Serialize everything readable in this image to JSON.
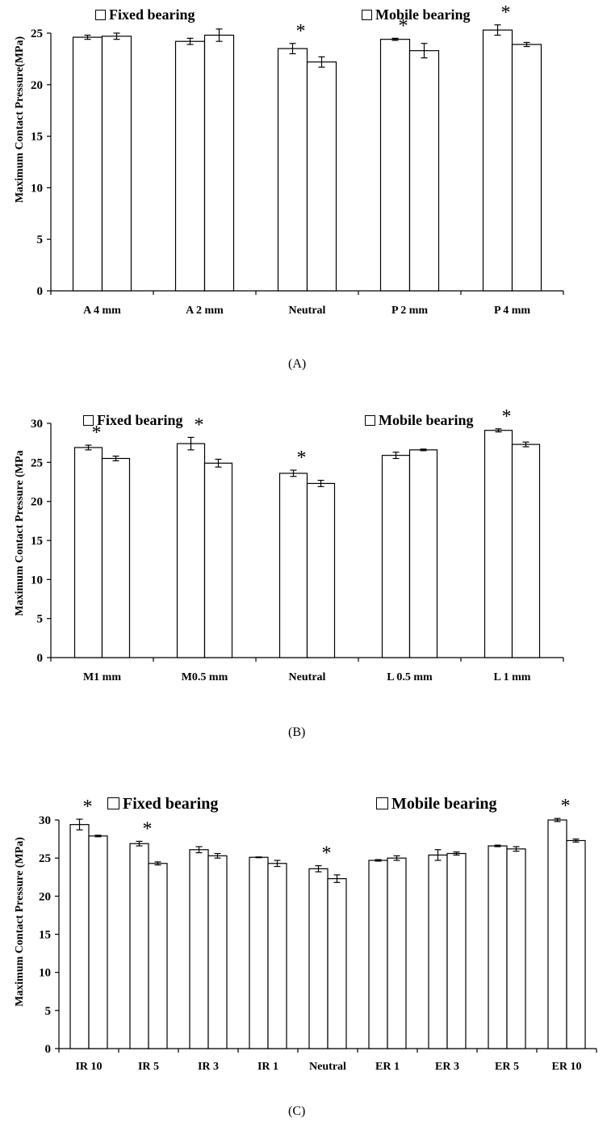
{
  "chart_data": [
    {
      "type": "bar",
      "panel_label": "(A)",
      "ylabel": "Maximum Contact Pressure(MPa)",
      "xlabel": "",
      "ylim": [
        0,
        25
      ],
      "yticks": [
        0,
        5,
        10,
        15,
        20,
        25
      ],
      "legend_position": "top",
      "categories": [
        "A 4 mm",
        "A 2 mm",
        "Neutral",
        "P 2 mm",
        "P 4 mm"
      ],
      "series": [
        {
          "name": "Fixed bearing",
          "values": [
            24.6,
            24.2,
            23.5,
            24.4,
            25.3
          ],
          "errors": [
            0.2,
            0.3,
            0.5,
            0.1,
            0.5
          ]
        },
        {
          "name": "Mobile bearing",
          "values": [
            24.7,
            24.8,
            22.2,
            23.3,
            23.9
          ],
          "errors": [
            0.3,
            0.6,
            0.5,
            0.7,
            0.2
          ]
        }
      ],
      "significance": [
        false,
        false,
        true,
        true,
        true
      ],
      "significance_marker": "*"
    },
    {
      "type": "bar",
      "panel_label": "(B)",
      "ylabel": "Maximum Contact Pressure (MPa",
      "xlabel": "",
      "ylim": [
        0,
        30
      ],
      "yticks": [
        0,
        5,
        10,
        15,
        20,
        25,
        30
      ],
      "legend_position": "top",
      "categories": [
        "M1 mm",
        "M0.5 mm",
        "Neutral",
        "L 0.5 mm",
        "L 1 mm"
      ],
      "series": [
        {
          "name": "Fixed bearing",
          "values": [
            26.9,
            27.4,
            23.6,
            25.9,
            29.1
          ],
          "errors": [
            0.3,
            0.8,
            0.4,
            0.4,
            0.2
          ]
        },
        {
          "name": "Mobile bearing",
          "values": [
            25.5,
            24.9,
            22.3,
            26.6,
            27.3
          ],
          "errors": [
            0.3,
            0.5,
            0.4,
            0.1,
            0.3
          ]
        }
      ],
      "significance": [
        true,
        true,
        true,
        false,
        true
      ],
      "significance_marker": "*"
    },
    {
      "type": "bar",
      "panel_label": "(C)",
      "ylabel": "Maximum Contact Pressure (MPa)",
      "xlabel": "",
      "ylim": [
        0,
        30
      ],
      "yticks": [
        0,
        5,
        10,
        15,
        20,
        25,
        30
      ],
      "legend_position": "top",
      "categories": [
        "IR 10",
        "IR 5",
        "IR 3",
        "IR 1",
        "Neutral",
        "ER 1",
        "ER 3",
        "ER 5",
        "ER 10"
      ],
      "series": [
        {
          "name": "Fixed bearing",
          "values": [
            29.4,
            26.9,
            26.1,
            25.1,
            23.6,
            24.7,
            25.4,
            26.6,
            30.0
          ],
          "errors": [
            0.7,
            0.3,
            0.4,
            0.05,
            0.4,
            0.1,
            0.7,
            0.1,
            0.2
          ]
        },
        {
          "name": "Mobile bearing",
          "values": [
            27.9,
            24.3,
            25.3,
            24.3,
            22.3,
            25.0,
            25.6,
            26.2,
            27.3
          ],
          "errors": [
            0.1,
            0.2,
            0.3,
            0.4,
            0.5,
            0.3,
            0.2,
            0.3,
            0.2
          ]
        }
      ],
      "significance": [
        true,
        true,
        false,
        false,
        true,
        false,
        false,
        false,
        true
      ],
      "significance_marker": "*"
    }
  ]
}
